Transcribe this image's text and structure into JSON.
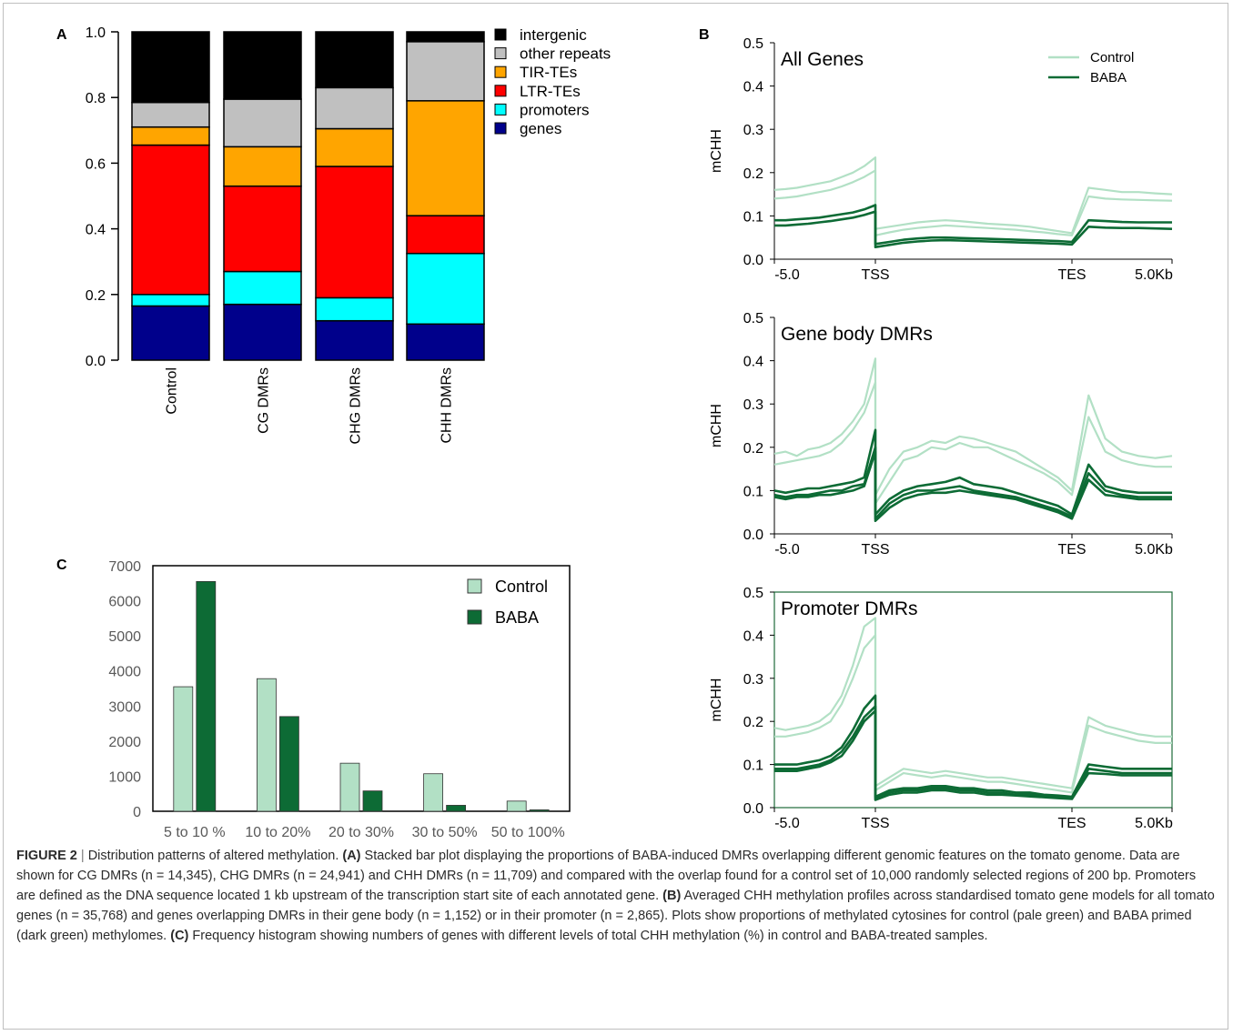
{
  "panels": {
    "a_letter": "A",
    "b_letter": "B",
    "c_letter": "C"
  },
  "colors": {
    "intergenic": "#000000",
    "other_repeats": "#c0c0c0",
    "tir_tes": "#ffa500",
    "ltr_tes": "#ff0000",
    "promoters": "#00ffff",
    "genes": "#00008b",
    "control": "#b2e0c5",
    "baba": "#0d6b35"
  },
  "chart_data": [
    {
      "id": "A",
      "type": "bar",
      "stacked": true,
      "categories": [
        "Control",
        "CG DMRs",
        "CHG DMRs",
        "CHH DMRs"
      ],
      "series": [
        {
          "name": "genes",
          "values": [
            0.165,
            0.17,
            0.12,
            0.11
          ]
        },
        {
          "name": "promoters",
          "values": [
            0.035,
            0.1,
            0.07,
            0.215
          ]
        },
        {
          "name": "LTR-TEs",
          "values": [
            0.455,
            0.26,
            0.4,
            0.115
          ]
        },
        {
          "name": "TIR-TEs",
          "values": [
            0.055,
            0.12,
            0.115,
            0.35
          ]
        },
        {
          "name": "other repeats",
          "values": [
            0.075,
            0.145,
            0.125,
            0.18
          ]
        },
        {
          "name": "intergenic",
          "values": [
            0.215,
            0.205,
            0.17,
            0.03
          ]
        }
      ],
      "ylim": [
        0,
        1
      ],
      "yticks": [
        "0.0",
        "0.2",
        "0.4",
        "0.6",
        "0.8",
        "1.0"
      ],
      "legend_position": "top-right"
    },
    {
      "id": "B1",
      "type": "line",
      "title": "All Genes",
      "ylabel": "mCHH",
      "xticks": [
        "-5.0",
        "TSS",
        "TES",
        "5.0Kb"
      ],
      "yticks": [
        "0.0",
        "0.1",
        "0.2",
        "0.3",
        "0.4",
        "0.5"
      ],
      "ylim": [
        0,
        0.5
      ],
      "legend": [
        "Control",
        "BABA"
      ],
      "series": [
        {
          "name": "Control",
          "values": [
            0.16,
            0.162,
            0.165,
            0.17,
            0.175,
            0.18,
            0.19,
            0.2,
            0.215,
            0.235,
            0.07,
            0.075,
            0.08,
            0.085,
            0.088,
            0.09,
            0.088,
            0.085,
            0.082,
            0.08,
            0.078,
            0.075,
            0.07,
            0.065,
            0.06,
            0.165,
            0.16,
            0.155,
            0.155,
            0.152,
            0.15
          ]
        },
        {
          "name": "Control",
          "values": [
            0.14,
            0.142,
            0.145,
            0.15,
            0.155,
            0.16,
            0.168,
            0.178,
            0.19,
            0.205,
            0.055,
            0.062,
            0.068,
            0.072,
            0.075,
            0.078,
            0.076,
            0.074,
            0.072,
            0.07,
            0.068,
            0.065,
            0.062,
            0.058,
            0.055,
            0.145,
            0.14,
            0.138,
            0.137,
            0.136,
            0.135
          ]
        },
        {
          "name": "BABA",
          "values": [
            0.09,
            0.09,
            0.092,
            0.094,
            0.096,
            0.1,
            0.104,
            0.108,
            0.115,
            0.125,
            0.035,
            0.04,
            0.045,
            0.048,
            0.05,
            0.05,
            0.049,
            0.048,
            0.047,
            0.046,
            0.045,
            0.044,
            0.043,
            0.042,
            0.04,
            0.09,
            0.088,
            0.086,
            0.085,
            0.085,
            0.085
          ]
        },
        {
          "name": "BABA",
          "values": [
            0.078,
            0.078,
            0.08,
            0.082,
            0.085,
            0.088,
            0.092,
            0.096,
            0.102,
            0.11,
            0.028,
            0.033,
            0.038,
            0.041,
            0.043,
            0.044,
            0.043,
            0.042,
            0.041,
            0.04,
            0.039,
            0.038,
            0.037,
            0.036,
            0.034,
            0.075,
            0.073,
            0.072,
            0.072,
            0.071,
            0.07
          ]
        }
      ]
    },
    {
      "id": "B2",
      "type": "line",
      "title": "Gene body DMRs",
      "ylabel": "mCHH",
      "xticks": [
        "-5.0",
        "TSS",
        "TES",
        "5.0Kb"
      ],
      "yticks": [
        "0.0",
        "0.1",
        "0.2",
        "0.3",
        "0.4",
        "0.5"
      ],
      "ylim": [
        0,
        0.5
      ],
      "series": [
        {
          "name": "Control",
          "values": [
            0.185,
            0.19,
            0.18,
            0.195,
            0.2,
            0.21,
            0.23,
            0.26,
            0.3,
            0.405,
            0.09,
            0.15,
            0.19,
            0.2,
            0.215,
            0.21,
            0.225,
            0.22,
            0.21,
            0.2,
            0.19,
            0.17,
            0.15,
            0.13,
            0.1,
            0.32,
            0.22,
            0.19,
            0.18,
            0.175,
            0.18
          ]
        },
        {
          "name": "Control",
          "values": [
            0.16,
            0.165,
            0.17,
            0.175,
            0.18,
            0.19,
            0.21,
            0.24,
            0.28,
            0.35,
            0.07,
            0.12,
            0.17,
            0.18,
            0.2,
            0.195,
            0.21,
            0.2,
            0.2,
            0.185,
            0.17,
            0.155,
            0.14,
            0.12,
            0.09,
            0.27,
            0.19,
            0.17,
            0.16,
            0.155,
            0.155
          ]
        },
        {
          "name": "BABA",
          "values": [
            0.1,
            0.095,
            0.1,
            0.105,
            0.105,
            0.11,
            0.115,
            0.12,
            0.13,
            0.24,
            0.045,
            0.08,
            0.1,
            0.11,
            0.115,
            0.12,
            0.13,
            0.115,
            0.11,
            0.105,
            0.095,
            0.085,
            0.075,
            0.065,
            0.045,
            0.16,
            0.11,
            0.1,
            0.095,
            0.095,
            0.095
          ]
        },
        {
          "name": "BABA",
          "values": [
            0.09,
            0.085,
            0.09,
            0.09,
            0.095,
            0.1,
            0.1,
            0.11,
            0.115,
            0.2,
            0.035,
            0.07,
            0.09,
            0.1,
            0.1,
            0.105,
            0.11,
            0.1,
            0.095,
            0.09,
            0.085,
            0.075,
            0.065,
            0.055,
            0.04,
            0.14,
            0.1,
            0.09,
            0.085,
            0.085,
            0.085
          ]
        },
        {
          "name": "BABA",
          "values": [
            0.085,
            0.08,
            0.085,
            0.085,
            0.09,
            0.09,
            0.095,
            0.1,
            0.11,
            0.19,
            0.03,
            0.06,
            0.08,
            0.09,
            0.095,
            0.095,
            0.1,
            0.095,
            0.09,
            0.085,
            0.08,
            0.07,
            0.06,
            0.05,
            0.035,
            0.125,
            0.09,
            0.085,
            0.08,
            0.08,
            0.08
          ]
        }
      ]
    },
    {
      "id": "B3",
      "type": "line",
      "title": "Promoter DMRs",
      "ylabel": "mCHH",
      "xticks": [
        "-5.0",
        "TSS",
        "TES",
        "5.0Kb"
      ],
      "yticks": [
        "0.0",
        "0.1",
        "0.2",
        "0.3",
        "0.4",
        "0.5"
      ],
      "ylim": [
        0,
        0.5
      ],
      "series": [
        {
          "name": "Control",
          "values": [
            0.185,
            0.18,
            0.185,
            0.19,
            0.2,
            0.22,
            0.26,
            0.33,
            0.42,
            0.44,
            0.05,
            0.07,
            0.09,
            0.085,
            0.08,
            0.085,
            0.08,
            0.075,
            0.07,
            0.07,
            0.065,
            0.06,
            0.055,
            0.05,
            0.045,
            0.21,
            0.19,
            0.18,
            0.17,
            0.165,
            0.165
          ]
        },
        {
          "name": "Control",
          "values": [
            0.165,
            0.165,
            0.17,
            0.175,
            0.185,
            0.2,
            0.24,
            0.3,
            0.37,
            0.4,
            0.04,
            0.06,
            0.08,
            0.075,
            0.07,
            0.075,
            0.07,
            0.065,
            0.06,
            0.06,
            0.055,
            0.05,
            0.045,
            0.04,
            0.035,
            0.19,
            0.175,
            0.165,
            0.155,
            0.15,
            0.15
          ]
        },
        {
          "name": "BABA",
          "values": [
            0.1,
            0.1,
            0.1,
            0.105,
            0.11,
            0.12,
            0.14,
            0.18,
            0.23,
            0.26,
            0.025,
            0.04,
            0.045,
            0.045,
            0.05,
            0.05,
            0.045,
            0.045,
            0.04,
            0.04,
            0.035,
            0.035,
            0.03,
            0.028,
            0.025,
            0.1,
            0.095,
            0.09,
            0.09,
            0.09,
            0.09
          ]
        },
        {
          "name": "BABA",
          "values": [
            0.09,
            0.09,
            0.09,
            0.095,
            0.1,
            0.11,
            0.13,
            0.165,
            0.21,
            0.235,
            0.02,
            0.035,
            0.04,
            0.04,
            0.045,
            0.045,
            0.04,
            0.04,
            0.035,
            0.035,
            0.03,
            0.03,
            0.028,
            0.025,
            0.022,
            0.09,
            0.085,
            0.08,
            0.08,
            0.08,
            0.08
          ]
        },
        {
          "name": "BABA",
          "values": [
            0.085,
            0.085,
            0.085,
            0.09,
            0.095,
            0.105,
            0.12,
            0.155,
            0.2,
            0.225,
            0.018,
            0.03,
            0.035,
            0.035,
            0.04,
            0.04,
            0.035,
            0.035,
            0.03,
            0.03,
            0.028,
            0.026,
            0.024,
            0.022,
            0.02,
            0.08,
            0.078,
            0.075,
            0.075,
            0.075,
            0.075
          ]
        }
      ]
    },
    {
      "id": "C",
      "type": "bar",
      "categories": [
        "5 to 10 %",
        "10 to 20%",
        "20 to 30%",
        "30 to 50%",
        "50 to 100%"
      ],
      "series": [
        {
          "name": "Control",
          "values": [
            3550,
            3780,
            1370,
            1070,
            290
          ]
        },
        {
          "name": "BABA",
          "values": [
            6550,
            2700,
            580,
            170,
            40
          ]
        }
      ],
      "ylim": [
        0,
        7000
      ],
      "yticks": [
        "0",
        "1000",
        "2000",
        "3000",
        "4000",
        "5000",
        "6000",
        "7000"
      ],
      "legend_position": "top-right"
    }
  ],
  "caption": {
    "label": "FIGURE 2",
    "sep": " | ",
    "text1": "Distribution patterns of altered methylation. ",
    "a_tag": "(A)",
    "a_text": " Stacked bar plot displaying the proportions of BABA-induced DMRs overlapping different genomic features on the tomato genome. Data are shown for CG DMRs (n = 14,345), CHG DMRs (n = 24,941) and CHH DMRs (n = 11,709) and compared with the overlap found for a control set of 10,000 randomly selected regions of 200 bp. Promoters are defined as the DNA sequence located 1 kb upstream of the transcription start site of each annotated gene. ",
    "b_tag": "(B)",
    "b_text": " Averaged CHH methylation profiles across standardised tomato gene models for all tomato genes (n = 35,768) and genes overlapping DMRs in their gene body (n = 1,152) or in their promoter (n = 2,865). Plots show proportions of methylated cytosines for control (pale green) and BABA primed (dark green) methylomes. ",
    "c_tag": "(C)",
    "c_text": " Frequency histogram showing numbers of genes with different levels of total CHH methylation (%) in control and BABA-treated samples."
  }
}
